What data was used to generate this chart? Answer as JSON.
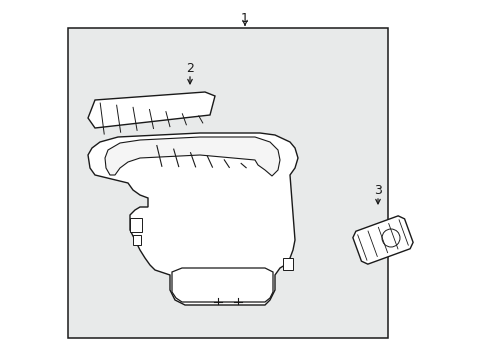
{
  "background_color": "#ffffff",
  "box_bg": "#e8eaea",
  "line_color": "#1a1a1a",
  "part_labels": [
    "1",
    "2",
    "3"
  ],
  "figsize": [
    4.89,
    3.6
  ],
  "dpi": 100
}
